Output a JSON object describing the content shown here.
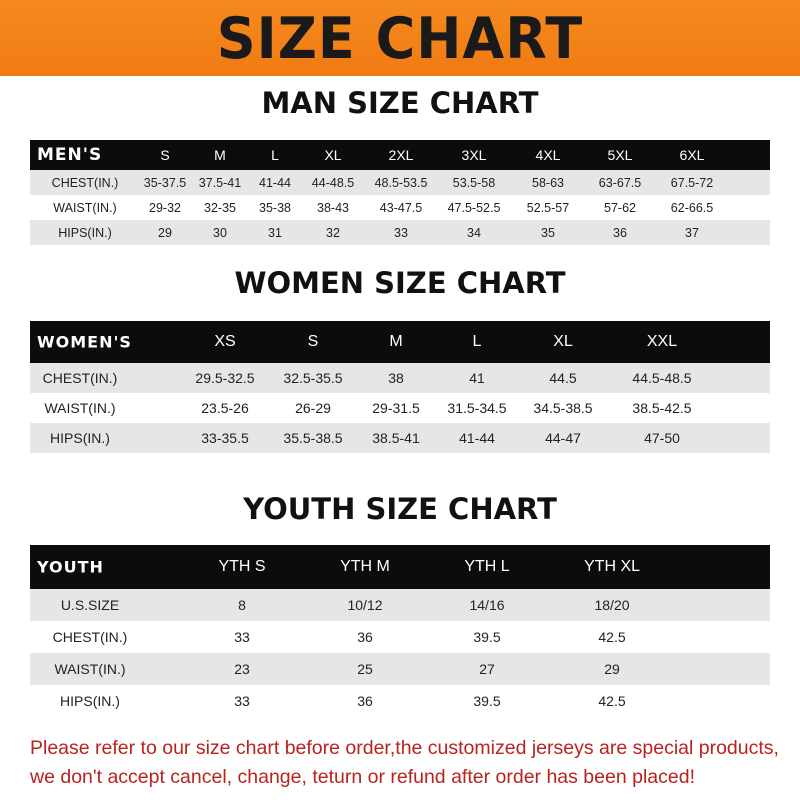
{
  "banner_title": "SIZE CHART",
  "men": {
    "title": "MAN SIZE CHART",
    "header": [
      "MEN'S",
      "S",
      "M",
      "L",
      "XL",
      "2XL",
      "3XL",
      "4XL",
      "5XL",
      "6XL"
    ],
    "rows": [
      [
        "CHEST(IN.)",
        "35-37.5",
        "37.5-41",
        "41-44",
        "44-48.5",
        "48.5-53.5",
        "53.5-58",
        "58-63",
        "63-67.5",
        "67.5-72"
      ],
      [
        "WAIST(IN.)",
        "29-32",
        "32-35",
        "35-38",
        "38-43",
        "43-47.5",
        "47.5-52.5",
        "52.5-57",
        "57-62",
        "62-66.5"
      ],
      [
        "HIPS(IN.)",
        "29",
        "30",
        "31",
        "32",
        "33",
        "34",
        "35",
        "36",
        "37"
      ]
    ]
  },
  "women": {
    "title": "WOMEN SIZE CHART",
    "header": [
      "WOMEN'S",
      "XS",
      "S",
      "M",
      "L",
      "XL",
      "XXL"
    ],
    "rows": [
      [
        "CHEST(IN.)",
        "29.5-32.5",
        "32.5-35.5",
        "38",
        "41",
        "44.5",
        "44.5-48.5"
      ],
      [
        "WAIST(IN.)",
        "23.5-26",
        "26-29",
        "29-31.5",
        "31.5-34.5",
        "34.5-38.5",
        "38.5-42.5"
      ],
      [
        "HIPS(IN.)",
        "33-35.5",
        "35.5-38.5",
        "38.5-41",
        "41-44",
        "44-47",
        "47-50"
      ]
    ]
  },
  "youth": {
    "title": "YOUTH SIZE CHART",
    "header": [
      "YOUTH",
      "YTH S",
      "YTH M",
      "YTH L",
      "YTH XL"
    ],
    "rows": [
      [
        "U.S.SIZE",
        "8",
        "10/12",
        "14/16",
        "18/20"
      ],
      [
        "CHEST(IN.)",
        "33",
        "36",
        "39.5",
        "42.5"
      ],
      [
        "WAIST(IN.)",
        "23",
        "25",
        "27",
        "29"
      ],
      [
        "HIPS(IN.)",
        "33",
        "36",
        "39.5",
        "42.5"
      ]
    ]
  },
  "notice": [
    "Please refer to our size chart before order,the customized jerseys are special products,",
    "we don't accept cancel, change, teturn or refund after order has been placed!"
  ],
  "colors": {
    "banner": "#f58a1f",
    "header_row": "#0c0c0c",
    "stripe": "#e6e6e6",
    "notice": "#b8231f"
  }
}
